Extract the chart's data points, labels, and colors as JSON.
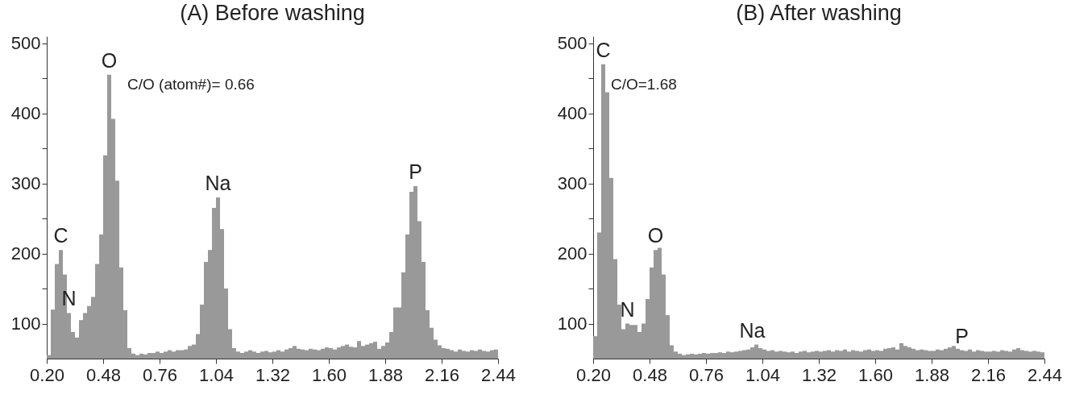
{
  "chart_data": [
    {
      "type": "histogram",
      "title": "(A) Before washing",
      "color": "#999999",
      "bins": [
        0.2,
        0.22,
        0.24,
        0.26,
        0.28,
        0.3,
        0.32,
        0.34,
        0.36,
        0.38,
        0.4,
        0.42,
        0.44,
        0.46,
        0.48,
        0.5,
        0.52,
        0.54,
        0.56,
        0.58,
        0.6,
        0.62,
        0.64,
        0.66,
        0.68,
        0.7,
        0.72,
        0.74,
        0.76,
        0.78,
        0.8,
        0.82,
        0.84,
        0.86,
        0.88,
        0.9,
        0.92,
        0.94,
        0.96,
        0.98,
        1.0,
        1.02,
        1.04,
        1.06,
        1.08,
        1.1,
        1.12,
        1.14,
        1.16,
        1.18,
        1.2,
        1.22,
        1.24,
        1.26,
        1.28,
        1.3,
        1.32,
        1.34,
        1.36,
        1.38,
        1.4,
        1.42,
        1.44,
        1.46,
        1.48,
        1.5,
        1.52,
        1.54,
        1.56,
        1.58,
        1.6,
        1.62,
        1.64,
        1.66,
        1.68,
        1.7,
        1.72,
        1.74,
        1.76,
        1.78,
        1.8,
        1.82,
        1.84,
        1.86,
        1.88,
        1.9,
        1.92,
        1.94,
        1.96,
        1.98,
        2.0,
        2.02,
        2.04,
        2.06,
        2.08,
        2.1,
        2.12,
        2.14,
        2.16,
        2.18,
        2.2,
        2.22,
        2.24,
        2.26,
        2.28,
        2.3,
        2.32,
        2.34,
        2.36,
        2.38,
        2.4,
        2.42,
        2.44
      ],
      "values": [
        55,
        120,
        185,
        205,
        170,
        115,
        88,
        80,
        105,
        115,
        125,
        138,
        185,
        227,
        340,
        455,
        392,
        304,
        180,
        119,
        65,
        57,
        55,
        57,
        56,
        58,
        58,
        60,
        58,
        60,
        62,
        60,
        62,
        62,
        63,
        68,
        70,
        85,
        127,
        188,
        205,
        265,
        280,
        235,
        150,
        92,
        65,
        60,
        58,
        60,
        62,
        60,
        58,
        60,
        61,
        59,
        60,
        62,
        60,
        63,
        65,
        68,
        64,
        63,
        62,
        64,
        63,
        62,
        64,
        66,
        65,
        63,
        66,
        68,
        70,
        67,
        66,
        75,
        68,
        70,
        72,
        74,
        64,
        68,
        73,
        88,
        123,
        123,
        173,
        227,
        288,
        296,
        246,
        188,
        119,
        94,
        77,
        69,
        65,
        64,
        62,
        60,
        63,
        61,
        60,
        62,
        61,
        63,
        61,
        60,
        62,
        63
      ],
      "xlim": [
        0.2,
        2.44
      ],
      "xticks": [
        {
          "value": 0.2,
          "label": "0.20"
        },
        {
          "value": 0.48,
          "label": "0.48"
        },
        {
          "value": 0.76,
          "label": "0.76"
        },
        {
          "value": 1.04,
          "label": "1.04"
        },
        {
          "value": 1.32,
          "label": "1.32"
        },
        {
          "value": 1.6,
          "label": "1.60"
        },
        {
          "value": 1.88,
          "label": "1.88"
        },
        {
          "value": 2.16,
          "label": "2.16"
        },
        {
          "value": 2.44,
          "label": "2.44"
        }
      ],
      "ylim": [
        50,
        510
      ],
      "yticks": [
        100,
        {
          "value": 150,
          "label": null
        },
        200,
        {
          "value": 250,
          "label": null
        },
        300,
        {
          "value": 350,
          "label": null
        },
        400,
        {
          "value": 450,
          "label": null
        },
        500
      ],
      "annotations": [
        {
          "text": "C",
          "x": 0.27,
          "y": 205
        },
        {
          "text": "N",
          "x": 0.31,
          "y": 115
        },
        {
          "text": "O",
          "x": 0.51,
          "y": 455
        },
        {
          "text": "Na",
          "x": 1.05,
          "y": 280
        },
        {
          "text": "P",
          "x": 2.03,
          "y": 296
        },
        "C/O (atom#)= 0.66"
      ]
    },
    {
      "type": "histogram",
      "title": "(B) After washing",
      "color": "#999999",
      "bins": [
        0.2,
        0.22,
        0.24,
        0.26,
        0.28,
        0.3,
        0.32,
        0.34,
        0.36,
        0.38,
        0.4,
        0.42,
        0.44,
        0.46,
        0.48,
        0.5,
        0.52,
        0.54,
        0.56,
        0.58,
        0.6,
        0.62,
        0.64,
        0.66,
        0.68,
        0.7,
        0.72,
        0.74,
        0.76,
        0.78,
        0.8,
        0.82,
        0.84,
        0.86,
        0.88,
        0.9,
        0.92,
        0.94,
        0.96,
        0.98,
        1.0,
        1.02,
        1.04,
        1.06,
        1.08,
        1.1,
        1.12,
        1.14,
        1.16,
        1.18,
        1.2,
        1.22,
        1.24,
        1.26,
        1.28,
        1.3,
        1.32,
        1.34,
        1.36,
        1.38,
        1.4,
        1.42,
        1.44,
        1.46,
        1.48,
        1.5,
        1.52,
        1.54,
        1.56,
        1.58,
        1.6,
        1.62,
        1.64,
        1.66,
        1.68,
        1.7,
        1.72,
        1.74,
        1.76,
        1.78,
        1.8,
        1.82,
        1.84,
        1.86,
        1.88,
        1.9,
        1.92,
        1.94,
        1.96,
        1.98,
        2.0,
        2.02,
        2.04,
        2.06,
        2.08,
        2.1,
        2.12,
        2.14,
        2.16,
        2.18,
        2.2,
        2.22,
        2.24,
        2.26,
        2.28,
        2.3,
        2.32,
        2.34,
        2.36,
        2.38,
        2.4,
        2.42,
        2.44
      ],
      "values": [
        82,
        230,
        470,
        430,
        308,
        192,
        127,
        92,
        100,
        98,
        98,
        88,
        100,
        135,
        180,
        205,
        208,
        170,
        112,
        69,
        60,
        57,
        55,
        56,
        57,
        56,
        57,
        58,
        57,
        58,
        58,
        59,
        58,
        60,
        59,
        60,
        61,
        62,
        63,
        66,
        70,
        65,
        63,
        61,
        62,
        60,
        61,
        60,
        59,
        60,
        58,
        60,
        61,
        59,
        60,
        61,
        60,
        61,
        62,
        60,
        62,
        61,
        63,
        60,
        62,
        61,
        60,
        62,
        63,
        61,
        62,
        61,
        64,
        65,
        66,
        63,
        72,
        68,
        66,
        64,
        62,
        63,
        62,
        61,
        61,
        63,
        62,
        64,
        66,
        68,
        64,
        62,
        61,
        63,
        60,
        62,
        61,
        60,
        60,
        61,
        60,
        62,
        61,
        60,
        63,
        65,
        62,
        61,
        60,
        61,
        60,
        59
      ],
      "xlim": [
        0.2,
        2.44
      ],
      "xticks": [
        {
          "value": 0.2,
          "label": "0.20"
        },
        {
          "value": 0.48,
          "label": "0.48"
        },
        {
          "value": 0.76,
          "label": "0.76"
        },
        {
          "value": 1.04,
          "label": "1.04"
        },
        {
          "value": 1.32,
          "label": "1.32"
        },
        {
          "value": 1.6,
          "label": "1.60"
        },
        {
          "value": 1.88,
          "label": "1.88"
        },
        {
          "value": 2.16,
          "label": "2.16"
        },
        {
          "value": 2.44,
          "label": "2.44"
        }
      ],
      "ylim": [
        50,
        510
      ],
      "yticks": [
        100,
        {
          "value": 150,
          "label": null
        },
        200,
        {
          "value": 250,
          "label": null
        },
        300,
        {
          "value": 350,
          "label": null
        },
        400,
        {
          "value": 450,
          "label": null
        },
        500
      ],
      "annotations": [
        {
          "text": "C",
          "x": 0.25,
          "y": 470
        },
        {
          "text": "N",
          "x": 0.37,
          "y": 100
        },
        {
          "text": "O",
          "x": 0.51,
          "y": 205
        },
        {
          "text": "Na",
          "x": 0.99,
          "y": 70
        },
        {
          "text": "P",
          "x": 2.03,
          "y": 61
        },
        "C/O=1.68"
      ]
    }
  ]
}
